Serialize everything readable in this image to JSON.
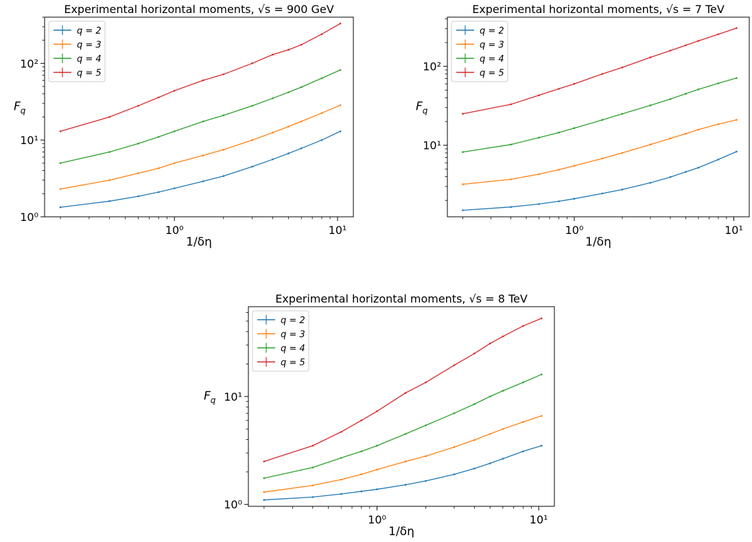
{
  "series_colors": {
    "q=2": "#1f77b4",
    "q=3": "#ff7f0e",
    "q=4": "#2ca02c",
    "q=5": "#d62728"
  },
  "chart_data": [
    {
      "type": "line",
      "title": "Experimental horizontal moments, √s = 900 GeV",
      "xlabel": "1/δη",
      "ylabel": "F_q",
      "xscale": "log",
      "yscale": "log",
      "xlim": [
        0.16,
        12.5
      ],
      "ylim": [
        1.0,
        400
      ],
      "xticks": [
        {
          "v": 1,
          "label": "10⁰"
        },
        {
          "v": 10,
          "label": "10¹"
        }
      ],
      "yticks": [
        {
          "v": 1,
          "label": "10⁰"
        },
        {
          "v": 10,
          "label": "10¹"
        },
        {
          "v": 100,
          "label": "10²"
        }
      ],
      "legend": "top-left",
      "series": [
        {
          "name": "q = 2",
          "x": [
            0.2,
            0.4,
            0.6,
            0.8,
            1.0,
            1.5,
            2,
            3,
            4,
            5,
            6,
            8,
            10.4
          ],
          "y": [
            1.33,
            1.6,
            1.85,
            2.1,
            2.35,
            2.9,
            3.4,
            4.5,
            5.6,
            6.7,
            7.8,
            10,
            13
          ]
        },
        {
          "name": "q = 3",
          "x": [
            0.2,
            0.4,
            0.6,
            0.8,
            1.0,
            1.5,
            2,
            3,
            4,
            5,
            6,
            8,
            10.4
          ],
          "y": [
            2.3,
            3.0,
            3.7,
            4.3,
            5.0,
            6.3,
            7.5,
            10,
            12.5,
            15,
            17.5,
            22.5,
            28.5
          ]
        },
        {
          "name": "q = 4",
          "x": [
            0.2,
            0.4,
            0.6,
            0.8,
            1.0,
            1.5,
            2,
            3,
            4,
            5,
            6,
            8,
            10.4
          ],
          "y": [
            5.0,
            7.0,
            9.0,
            11.0,
            13.0,
            17.5,
            21,
            28,
            35,
            42,
            49,
            64,
            82
          ]
        },
        {
          "name": "q = 5",
          "x": [
            0.2,
            0.4,
            0.6,
            0.8,
            1.0,
            1.5,
            2,
            3,
            4,
            5,
            6,
            8,
            10.4
          ],
          "y": [
            13,
            20,
            28,
            36,
            44,
            60,
            72,
            100,
            130,
            150,
            175,
            240,
            330
          ]
        }
      ]
    },
    {
      "type": "line",
      "title": "Experimental horizontal moments, √s = 7 TeV",
      "xlabel": "1/δη",
      "ylabel": "F_q",
      "xscale": "log",
      "yscale": "log",
      "xlim": [
        0.16,
        12.5
      ],
      "ylim": [
        1.24,
        420
      ],
      "xticks": [
        {
          "v": 1,
          "label": "10⁰"
        },
        {
          "v": 10,
          "label": "10¹"
        }
      ],
      "yticks": [
        {
          "v": 10,
          "label": "10¹"
        },
        {
          "v": 100,
          "label": "10²"
        }
      ],
      "legend": "top-left",
      "series": [
        {
          "name": "q = 2",
          "x": [
            0.2,
            0.4,
            0.6,
            0.8,
            1.0,
            1.5,
            2,
            3,
            4,
            5,
            6,
            8,
            10.4
          ],
          "y": [
            1.5,
            1.65,
            1.8,
            1.95,
            2.1,
            2.45,
            2.75,
            3.35,
            3.95,
            4.6,
            5.2,
            6.6,
            8.3
          ]
        },
        {
          "name": "q = 3",
          "x": [
            0.2,
            0.4,
            0.6,
            0.8,
            1.0,
            1.5,
            2,
            3,
            4,
            5,
            6,
            8,
            10.4
          ],
          "y": [
            3.2,
            3.7,
            4.3,
            4.9,
            5.5,
            6.8,
            8.0,
            10.2,
            12.2,
            14.0,
            15.8,
            18.5,
            21
          ]
        },
        {
          "name": "q = 4",
          "x": [
            0.2,
            0.4,
            0.6,
            0.8,
            1.0,
            1.5,
            2,
            3,
            4,
            5,
            6,
            8,
            10.4
          ],
          "y": [
            8.2,
            10.2,
            12.5,
            14.5,
            16.5,
            21,
            25,
            32,
            38.5,
            45,
            51,
            61,
            71
          ]
        },
        {
          "name": "q = 5",
          "x": [
            0.2,
            0.4,
            0.6,
            0.8,
            1.0,
            1.5,
            2,
            3,
            4,
            5,
            6,
            8,
            10.4
          ],
          "y": [
            25,
            33,
            43,
            52,
            60,
            80,
            97,
            130,
            158,
            185,
            210,
            255,
            305
          ]
        }
      ]
    },
    {
      "type": "line",
      "title": "Experimental horizontal moments, √s = 8 TeV",
      "xlabel": "1/δη",
      "ylabel": "F_q",
      "xscale": "log",
      "yscale": "log",
      "xlim": [
        0.16,
        12.5
      ],
      "ylim": [
        0.96,
        68
      ],
      "xticks": [
        {
          "v": 1,
          "label": "10⁰"
        },
        {
          "v": 10,
          "label": "10¹"
        }
      ],
      "yticks": [
        {
          "v": 1,
          "label": "10⁰"
        },
        {
          "v": 10,
          "label": "10¹"
        }
      ],
      "legend": "top-left",
      "series": [
        {
          "name": "q = 2",
          "x": [
            0.2,
            0.4,
            0.6,
            0.8,
            1.0,
            1.5,
            2,
            3,
            4,
            5,
            6,
            8,
            10.4
          ],
          "y": [
            1.1,
            1.17,
            1.25,
            1.32,
            1.38,
            1.52,
            1.65,
            1.9,
            2.15,
            2.4,
            2.65,
            3.1,
            3.5
          ]
        },
        {
          "name": "q = 3",
          "x": [
            0.2,
            0.4,
            0.6,
            0.8,
            1.0,
            1.5,
            2,
            3,
            4,
            5,
            6,
            8,
            10.4
          ],
          "y": [
            1.3,
            1.5,
            1.7,
            1.9,
            2.1,
            2.5,
            2.8,
            3.4,
            3.95,
            4.5,
            5.0,
            5.8,
            6.6
          ]
        },
        {
          "name": "q = 4",
          "x": [
            0.2,
            0.4,
            0.6,
            0.8,
            1.0,
            1.5,
            2,
            3,
            4,
            5,
            6,
            8,
            10.4
          ],
          "y": [
            1.75,
            2.2,
            2.7,
            3.1,
            3.5,
            4.5,
            5.4,
            7.0,
            8.5,
            10,
            11.3,
            13.5,
            16
          ]
        },
        {
          "name": "q = 5",
          "x": [
            0.2,
            0.4,
            0.6,
            0.8,
            1.0,
            1.5,
            2,
            3,
            4,
            5,
            6,
            8,
            10.4
          ],
          "y": [
            2.5,
            3.5,
            4.7,
            6.0,
            7.3,
            10.8,
            13.5,
            19.5,
            25,
            31,
            36,
            45,
            53
          ]
        }
      ]
    }
  ]
}
